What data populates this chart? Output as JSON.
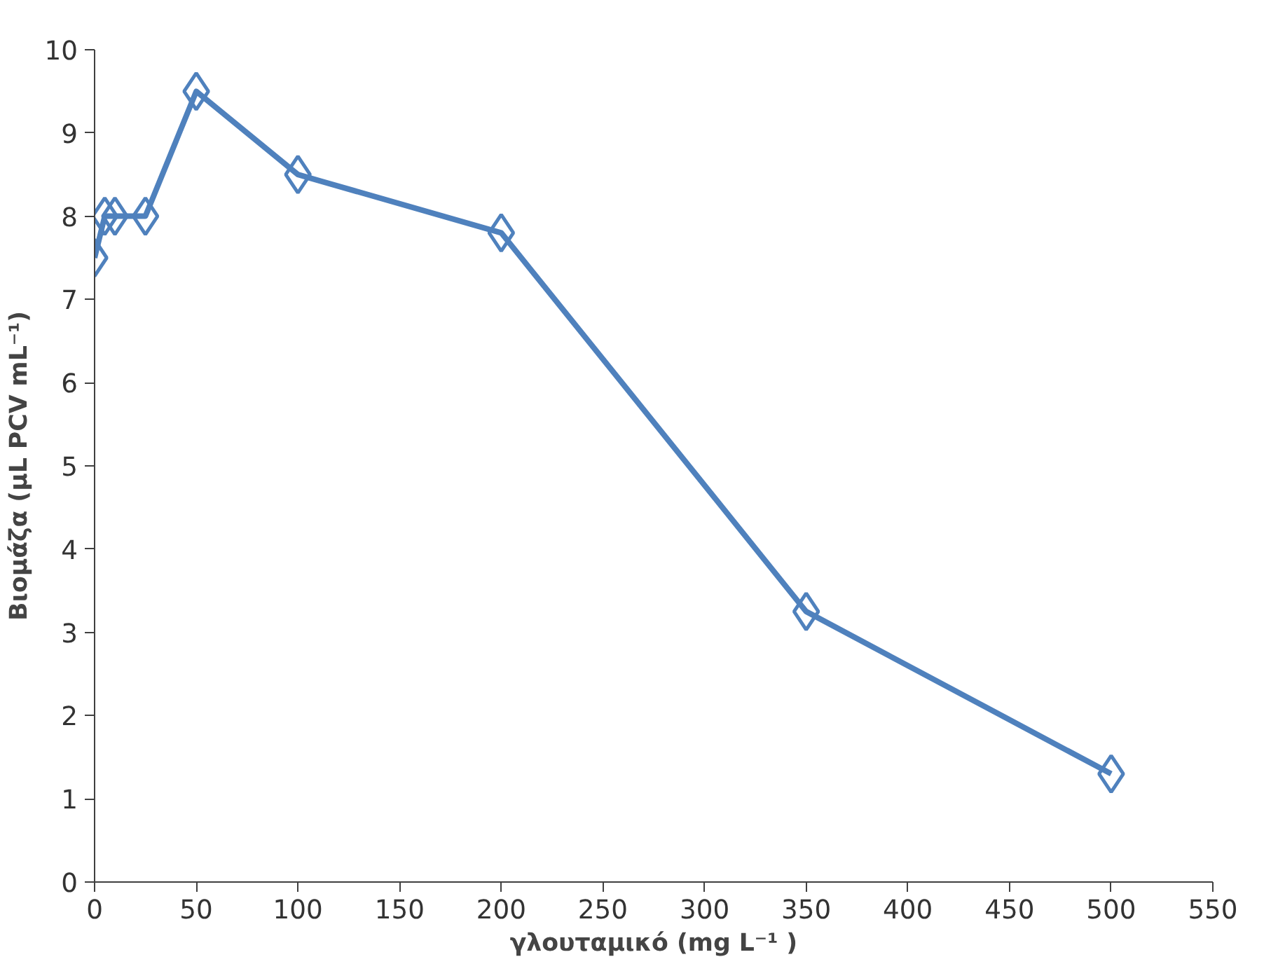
{
  "chart_data": {
    "type": "line",
    "xlabel": "γλουταμικό (mg L⁻¹ )",
    "ylabel": "Βιομάζα (μL PCV mL⁻¹)",
    "x": [
      0,
      5,
      10,
      25,
      50,
      100,
      200,
      350,
      500
    ],
    "series": [
      {
        "color": "#4f81bd",
        "values": [
          7.5,
          8,
          8,
          8,
          9.5,
          8.5,
          7.8,
          3.25,
          1.3
        ]
      }
    ],
    "xlim": [
      0,
      550
    ],
    "xticks": [
      0,
      50,
      100,
      150,
      200,
      250,
      300,
      350,
      400,
      450,
      500,
      550
    ],
    "ylim": [
      0,
      10
    ],
    "yticks": [
      0,
      1,
      2,
      3,
      4,
      5,
      6,
      7,
      8,
      9,
      10
    ],
    "grid": false,
    "marker": "diamond",
    "line_style": "solid"
  }
}
